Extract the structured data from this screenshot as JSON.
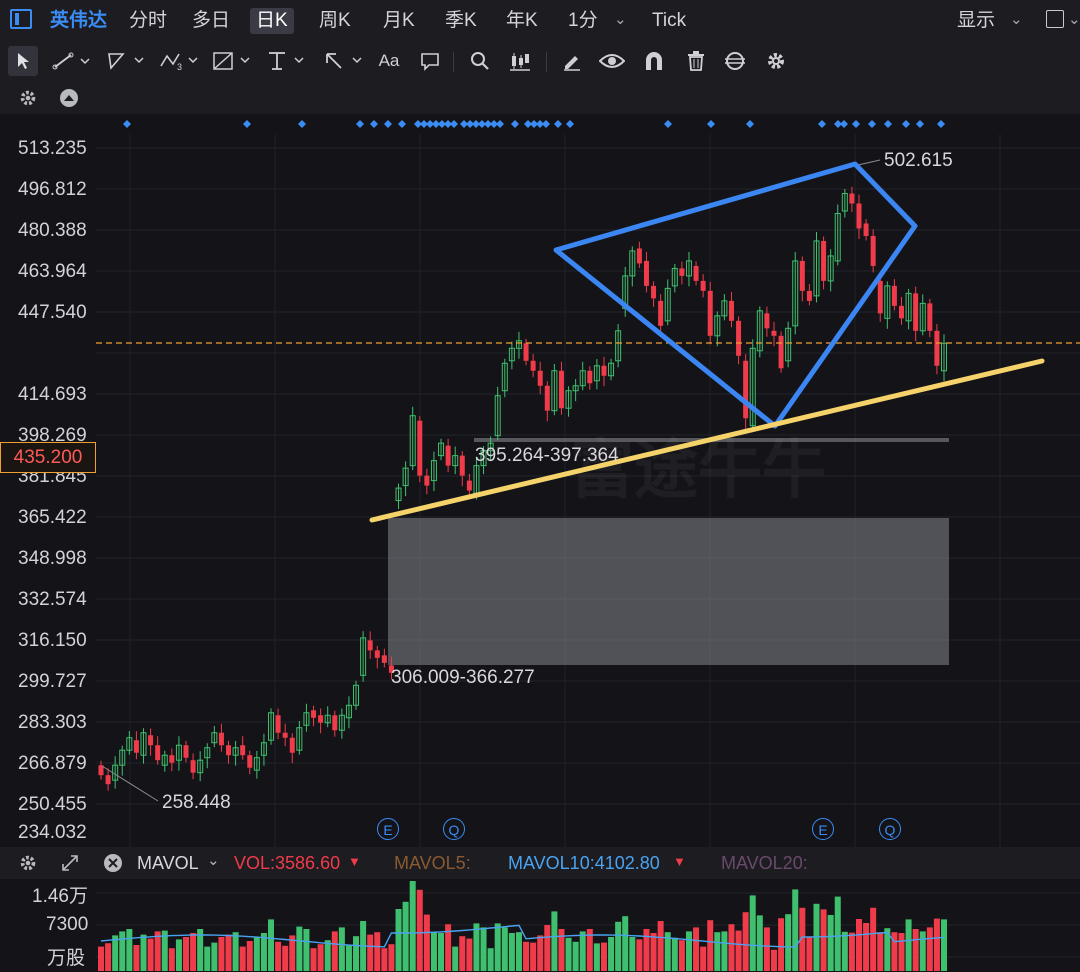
{
  "header": {
    "symbol": "英伟达",
    "tabs": [
      "分时",
      "多日",
      "日K",
      "周K",
      "月K",
      "季K",
      "年K",
      "1分",
      "Tick"
    ],
    "active_tab": "日K",
    "display_label": "显示"
  },
  "toolbar": {
    "text_tool_label": "Aa"
  },
  "price_axis": {
    "labels": [
      "513.235",
      "496.812",
      "480.388",
      "463.964",
      "447.540",
      "414.693",
      "398.269",
      "381.845",
      "365.422",
      "348.998",
      "332.574",
      "316.150",
      "299.727",
      "283.303",
      "266.879",
      "250.455",
      "234.032"
    ],
    "current_price": "435.200"
  },
  "annotations": {
    "high_label": "502.615",
    "low_label": "258.448",
    "zone_upper_label": "395.264-397.364",
    "zone_lower_label": "306.009-366.277",
    "event_markers": [
      "E",
      "Q",
      "E",
      "Q"
    ]
  },
  "watermark": "富途牛牛",
  "indicator_bar": {
    "indicator_name": "MAVOL",
    "vol": "VOL:3586.60",
    "mavol5": "MAVOL5:",
    "mavol10": "MAVOL10:4102.80",
    "mavol20": "MAVOL20:"
  },
  "volume_axis": {
    "labels": [
      "1.46万",
      "7300",
      "万股"
    ]
  },
  "colors": {
    "up": "#3fc06e",
    "down": "#f03b4a",
    "accent": "#3b8cf5",
    "triangle": "#3b86f2",
    "trendline": "#f5d36a",
    "current_price_line": "#f0a030"
  },
  "chart_data": {
    "type": "candlestick",
    "y_axis_range": [
      234.032,
      513.235
    ],
    "current_price": 435.2,
    "series": [
      {
        "o": 266,
        "c": 262
      },
      {
        "o": 262,
        "c": 258.4
      },
      {
        "o": 260,
        "c": 266
      },
      {
        "o": 266,
        "c": 272
      },
      {
        "o": 272,
        "c": 277
      },
      {
        "o": 276,
        "c": 271
      },
      {
        "o": 270,
        "c": 279
      },
      {
        "o": 278,
        "c": 274
      },
      {
        "o": 274,
        "c": 268
      },
      {
        "o": 266,
        "c": 270
      },
      {
        "o": 270,
        "c": 267
      },
      {
        "o": 268,
        "c": 274
      },
      {
        "o": 274,
        "c": 269
      },
      {
        "o": 268,
        "c": 263
      },
      {
        "o": 263,
        "c": 268
      },
      {
        "o": 269,
        "c": 273
      },
      {
        "o": 275,
        "c": 279
      },
      {
        "o": 279,
        "c": 274
      },
      {
        "o": 274,
        "c": 270
      },
      {
        "o": 270,
        "c": 273
      },
      {
        "o": 274,
        "c": 270
      },
      {
        "o": 270,
        "c": 265
      },
      {
        "o": 264,
        "c": 269
      },
      {
        "o": 270,
        "c": 275
      },
      {
        "o": 276,
        "c": 287
      },
      {
        "o": 286,
        "c": 279
      },
      {
        "o": 279,
        "c": 277
      },
      {
        "o": 277,
        "c": 271
      },
      {
        "o": 272,
        "c": 281
      },
      {
        "o": 282,
        "c": 287
      },
      {
        "o": 288,
        "c": 285
      },
      {
        "o": 286,
        "c": 283
      },
      {
        "o": 283,
        "c": 286
      },
      {
        "o": 286,
        "c": 280
      },
      {
        "o": 280,
        "c": 286
      },
      {
        "o": 285,
        "c": 290
      },
      {
        "o": 290,
        "c": 298
      },
      {
        "o": 302,
        "c": 317
      },
      {
        "o": 316,
        "c": 312
      },
      {
        "o": 312,
        "c": 309
      },
      {
        "o": 310,
        "c": 307
      },
      {
        "o": 306,
        "c": 303
      },
      {
        "o": 372,
        "c": 377
      },
      {
        "o": 378,
        "c": 385
      },
      {
        "o": 386,
        "c": 406
      },
      {
        "o": 404,
        "c": 382
      },
      {
        "o": 382,
        "c": 378
      },
      {
        "o": 380,
        "c": 388
      },
      {
        "o": 390,
        "c": 395
      },
      {
        "o": 394,
        "c": 386
      },
      {
        "o": 386,
        "c": 390
      },
      {
        "o": 390,
        "c": 382
      },
      {
        "o": 380,
        "c": 376
      },
      {
        "o": 375,
        "c": 386
      },
      {
        "o": 386,
        "c": 392
      },
      {
        "o": 392,
        "c": 395
      },
      {
        "o": 398,
        "c": 414
      },
      {
        "o": 416,
        "c": 427
      },
      {
        "o": 428,
        "c": 433
      },
      {
        "o": 433,
        "c": 436
      },
      {
        "o": 435,
        "c": 428
      },
      {
        "o": 428,
        "c": 424
      },
      {
        "o": 424,
        "c": 418
      },
      {
        "o": 418,
        "c": 408
      },
      {
        "o": 408,
        "c": 424
      },
      {
        "o": 424,
        "c": 409
      },
      {
        "o": 409,
        "c": 416
      },
      {
        "o": 416,
        "c": 418
      },
      {
        "o": 418,
        "c": 424
      },
      {
        "o": 424,
        "c": 419
      },
      {
        "o": 420,
        "c": 426
      },
      {
        "o": 426,
        "c": 422
      },
      {
        "o": 422,
        "c": 427
      },
      {
        "o": 428,
        "c": 440
      },
      {
        "o": 449,
        "c": 462
      },
      {
        "o": 462,
        "c": 472
      },
      {
        "o": 473,
        "c": 467
      },
      {
        "o": 468,
        "c": 458
      },
      {
        "o": 458,
        "c": 453
      },
      {
        "o": 452,
        "c": 442
      },
      {
        "o": 444,
        "c": 457
      },
      {
        "o": 458,
        "c": 465
      },
      {
        "o": 465,
        "c": 462
      },
      {
        "o": 462,
        "c": 468
      },
      {
        "o": 466,
        "c": 460
      },
      {
        "o": 460,
        "c": 456
      },
      {
        "o": 456,
        "c": 438
      },
      {
        "o": 438,
        "c": 446
      },
      {
        "o": 446,
        "c": 452
      },
      {
        "o": 452,
        "c": 444
      },
      {
        "o": 444,
        "c": 430
      },
      {
        "o": 428,
        "c": 405
      },
      {
        "o": 402,
        "c": 433
      },
      {
        "o": 432,
        "c": 448
      },
      {
        "o": 447,
        "c": 441
      },
      {
        "o": 440,
        "c": 438
      },
      {
        "o": 438,
        "c": 425
      },
      {
        "o": 428,
        "c": 441
      },
      {
        "o": 442,
        "c": 468
      },
      {
        "o": 468,
        "c": 456
      },
      {
        "o": 456,
        "c": 452
      },
      {
        "o": 454,
        "c": 476
      },
      {
        "o": 476,
        "c": 460
      },
      {
        "o": 460,
        "c": 470
      },
      {
        "o": 468,
        "c": 487
      },
      {
        "o": 488,
        "c": 495
      },
      {
        "o": 495,
        "c": 491
      },
      {
        "o": 491,
        "c": 481
      },
      {
        "o": 483,
        "c": 478
      },
      {
        "o": 478,
        "c": 466
      },
      {
        "o": 460,
        "c": 447
      },
      {
        "o": 445,
        "c": 458
      },
      {
        "o": 458,
        "c": 450
      },
      {
        "o": 450,
        "c": 445
      },
      {
        "o": 444,
        "c": 455
      },
      {
        "o": 455,
        "c": 440
      },
      {
        "o": 440,
        "c": 451
      },
      {
        "o": 451,
        "c": 440
      },
      {
        "o": 440,
        "c": 426
      },
      {
        "o": 424,
        "c": 435
      }
    ],
    "volume_axis_labels": [
      "1.46万",
      "7300"
    ],
    "annotations": [
      "502.615",
      "258.448",
      "395.264-397.364",
      "306.009-366.277"
    ]
  }
}
